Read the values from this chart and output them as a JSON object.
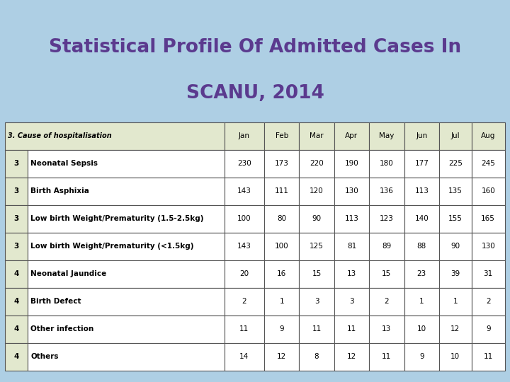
{
  "title_line1": "Statistical Profile Of Admitted Cases In",
  "title_line2": "SCANU, 2014",
  "title_color": "#5B3A8E",
  "background_color": "#AECFE4",
  "header_row": [
    "3. Cause of hospitalisation",
    "Jan",
    "Feb",
    "Mar",
    "Apr",
    "May",
    "Jun",
    "Jul",
    "Aug"
  ],
  "header_bg": "#E2E8CE",
  "rows": [
    {
      "num": "3",
      "label": "Neonatal Sepsis",
      "values": [
        "230",
        "173",
        "220",
        "190",
        "180",
        "177",
        "225",
        "245"
      ]
    },
    {
      "num": "3",
      "label": "Birth Asphixia",
      "values": [
        "143",
        "111",
        "120",
        "130",
        "136",
        "113",
        "135",
        "160"
      ]
    },
    {
      "num": "3",
      "label": "Low birth Weight/Prematurity (1.5-2.5kg)",
      "values": [
        "100",
        "80",
        "90",
        "113",
        "123",
        "140",
        "155",
        "165"
      ]
    },
    {
      "num": "3",
      "label": "Low birth Weight/Prematurity (<1.5kg)",
      "values": [
        "143",
        "100",
        "125",
        "81",
        "89",
        "88",
        "90",
        "130"
      ]
    },
    {
      "num": "4",
      "label": "Neonatal Jaundice",
      "values": [
        "20",
        "16",
        "15",
        "13",
        "15",
        "23",
        "39",
        "31"
      ]
    },
    {
      "num": "4",
      "label": "Birth Defect",
      "values": [
        "2",
        "1",
        "3",
        "3",
        "2",
        "1",
        "1",
        "2"
      ]
    },
    {
      "num": "4",
      "label": "Other infection",
      "values": [
        "11",
        "9",
        "11",
        "11",
        "13",
        "10",
        "12",
        "9"
      ]
    },
    {
      "num": "4",
      "label": "Others",
      "values": [
        "14",
        "12",
        "8",
        "12",
        "11",
        "9",
        "10",
        "11"
      ]
    }
  ],
  "row_bg": "#FFFFFF",
  "table_border_color": "#555555",
  "num_col_bg": "#E2E8CE",
  "title_fontsize": 19,
  "header_fontsize": 7,
  "cell_fontsize": 7.5
}
